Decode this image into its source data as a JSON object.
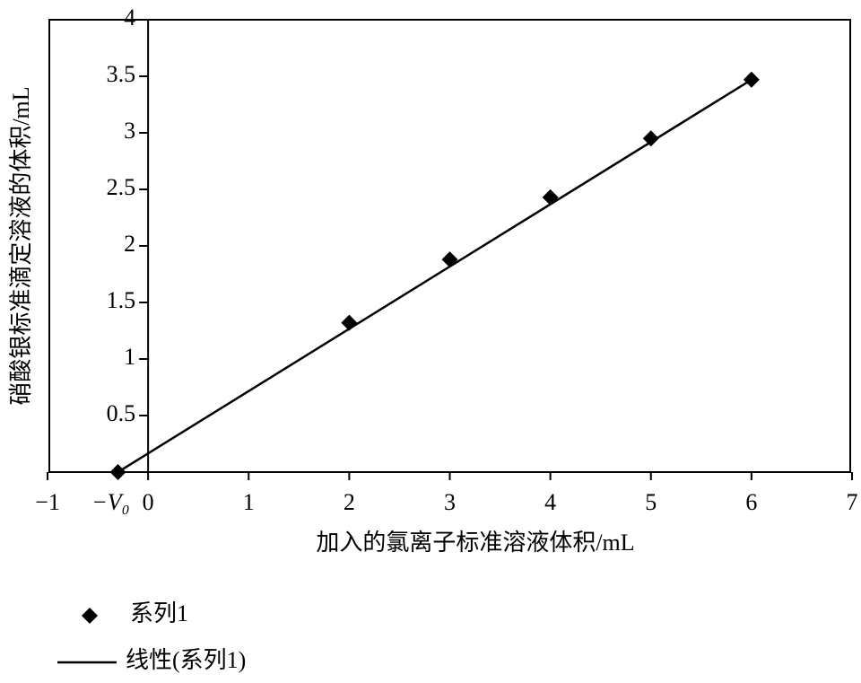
{
  "chart_data": {
    "type": "scatter",
    "x_label": "加入的氯离子标准溶液体积/mL",
    "y_label": "硝酸银标准滴定溶液的体积/mL",
    "annotation": "−V₀",
    "xlim": [
      -1,
      7
    ],
    "ylim": [
      0,
      4
    ],
    "xticks": [
      {
        "value": -1,
        "label": "−1"
      },
      0,
      1,
      2,
      3,
      4,
      5,
      6,
      7
    ],
    "yticks": [
      0.5,
      1,
      1.5,
      2,
      2.5,
      3,
      3.5,
      4
    ],
    "series": [
      {
        "name": "系列1",
        "type": "scatter",
        "color": "#000000",
        "x": [
          -0.3,
          2,
          3,
          4,
          5,
          6
        ],
        "values": [
          0,
          1.32,
          1.88,
          2.43,
          2.95,
          3.47
        ]
      },
      {
        "name": "线性(系列1)",
        "type": "line",
        "color": "#000000",
        "x": [
          -0.3,
          6
        ],
        "values": [
          0,
          3.47
        ]
      }
    ]
  }
}
